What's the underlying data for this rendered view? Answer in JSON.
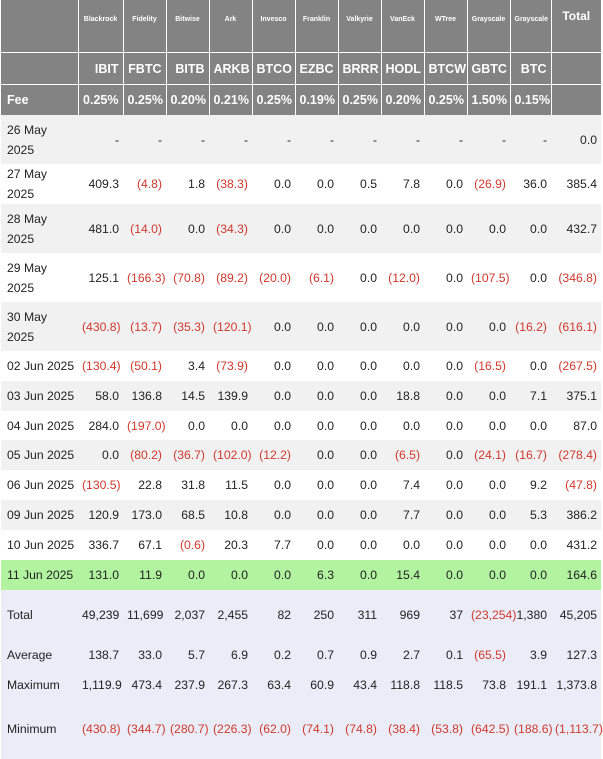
{
  "header": {
    "issuers": [
      "",
      "Blackrock",
      "Fidelity",
      "Bitwise",
      "Ark",
      "Invesco",
      "Franklin",
      "Valkyrie",
      "VanEck",
      "WTree",
      "Grayscale",
      "Grayscale",
      "Total"
    ],
    "tickers": [
      "",
      "IBIT",
      "FBTC",
      "BITB",
      "ARKB",
      "BTCO",
      "EZBC",
      "BRRR",
      "HODL",
      "BTCW",
      "GBTC",
      "BTC",
      ""
    ],
    "fee_label": "Fee",
    "fees": [
      "0.25%",
      "0.25%",
      "0.20%",
      "0.21%",
      "0.25%",
      "0.19%",
      "0.25%",
      "0.20%",
      "0.25%",
      "1.50%",
      "0.15%",
      ""
    ]
  },
  "rows": [
    {
      "date": "26 May 2025",
      "values": [
        "-",
        "-",
        "-",
        "-",
        "-",
        "-",
        "-",
        "-",
        "-",
        "-",
        "-",
        "0.0"
      ]
    },
    {
      "date": "27 May 2025",
      "values": [
        "409.3",
        "(4.8)",
        "1.8",
        "(38.3)",
        "0.0",
        "0.0",
        "0.5",
        "7.8",
        "0.0",
        "(26.9)",
        "36.0",
        "385.4"
      ]
    },
    {
      "date": "28 May 2025",
      "values": [
        "481.0",
        "(14.0)",
        "0.0",
        "(34.3)",
        "0.0",
        "0.0",
        "0.0",
        "0.0",
        "0.0",
        "0.0",
        "0.0",
        "432.7"
      ]
    },
    {
      "date": "29 May 2025",
      "values": [
        "125.1",
        "(166.3)",
        "(70.8)",
        "(89.2)",
        "(20.0)",
        "(6.1)",
        "0.0",
        "(12.0)",
        "0.0",
        "(107.5)",
        "0.0",
        "(346.8)"
      ]
    },
    {
      "date": "30 May 2025",
      "values": [
        "(430.8)",
        "(13.7)",
        "(35.3)",
        "(120.1)",
        "0.0",
        "0.0",
        "0.0",
        "0.0",
        "0.0",
        "0.0",
        "(16.2)",
        "(616.1)"
      ]
    },
    {
      "date": "02 Jun 2025",
      "values": [
        "(130.4)",
        "(50.1)",
        "3.4",
        "(73.9)",
        "0.0",
        "0.0",
        "0.0",
        "0.0",
        "0.0",
        "(16.5)",
        "0.0",
        "(267.5)"
      ]
    },
    {
      "date": "03 Jun 2025",
      "values": [
        "58.0",
        "136.8",
        "14.5",
        "139.9",
        "0.0",
        "0.0",
        "0.0",
        "18.8",
        "0.0",
        "0.0",
        "7.1",
        "375.1"
      ]
    },
    {
      "date": "04 Jun 2025",
      "values": [
        "284.0",
        "(197.0)",
        "0.0",
        "0.0",
        "0.0",
        "0.0",
        "0.0",
        "0.0",
        "0.0",
        "0.0",
        "0.0",
        "87.0"
      ]
    },
    {
      "date": "05 Jun 2025",
      "values": [
        "0.0",
        "(80.2)",
        "(36.7)",
        "(102.0)",
        "(12.2)",
        "0.0",
        "0.0",
        "(6.5)",
        "0.0",
        "(24.1)",
        "(16.7)",
        "(278.4)"
      ]
    },
    {
      "date": "06 Jun 2025",
      "values": [
        "(130.5)",
        "22.8",
        "31.8",
        "11.5",
        "0.0",
        "0.0",
        "0.0",
        "7.4",
        "0.0",
        "0.0",
        "9.2",
        "(47.8)"
      ]
    },
    {
      "date": "09 Jun 2025",
      "values": [
        "120.9",
        "173.0",
        "68.5",
        "10.8",
        "0.0",
        "0.0",
        "0.0",
        "7.7",
        "0.0",
        "0.0",
        "5.3",
        "386.2"
      ]
    },
    {
      "date": "10 Jun 2025",
      "values": [
        "336.7",
        "67.1",
        "(0.6)",
        "20.3",
        "7.7",
        "0.0",
        "0.0",
        "0.0",
        "0.0",
        "0.0",
        "0.0",
        "431.2"
      ]
    },
    {
      "date": "11 Jun 2025",
      "values": [
        "131.0",
        "11.9",
        "0.0",
        "0.0",
        "0.0",
        "6.3",
        "0.0",
        "15.4",
        "0.0",
        "0.0",
        "0.0",
        "164.6"
      ]
    }
  ],
  "stats": [
    {
      "label": "Total",
      "values": [
        "49,239",
        "11,699",
        "2,037",
        "2,455",
        "82",
        "250",
        "311",
        "969",
        "37",
        "(23,254)",
        "1,380",
        "45,205"
      ]
    },
    {
      "label": "Average",
      "values": [
        "138.7",
        "33.0",
        "5.7",
        "6.9",
        "0.2",
        "0.7",
        "0.9",
        "2.7",
        "0.1",
        "(65.5)",
        "3.9",
        "127.3"
      ]
    },
    {
      "label": "Maximum",
      "values": [
        "1,119.9",
        "473.4",
        "237.9",
        "267.3",
        "63.4",
        "60.9",
        "43.4",
        "118.8",
        "118.5",
        "73.8",
        "191.1",
        "1,373.8"
      ]
    },
    {
      "label": "Minimum",
      "values": [
        "(430.8)",
        "(344.7)",
        "(280.7)",
        "(226.3)",
        "(62.0)",
        "(74.1)",
        "(74.8)",
        "(38.4)",
        "(53.8)",
        "(642.5)",
        "(188.6)",
        "(1,113.7)"
      ]
    }
  ],
  "colors": {
    "header_bg": "#838383",
    "negative": "#d0382c",
    "highlight_row": "#b2f3a0",
    "stats_bg": "#eaedf8",
    "alt_row": "#f1f1f1"
  }
}
